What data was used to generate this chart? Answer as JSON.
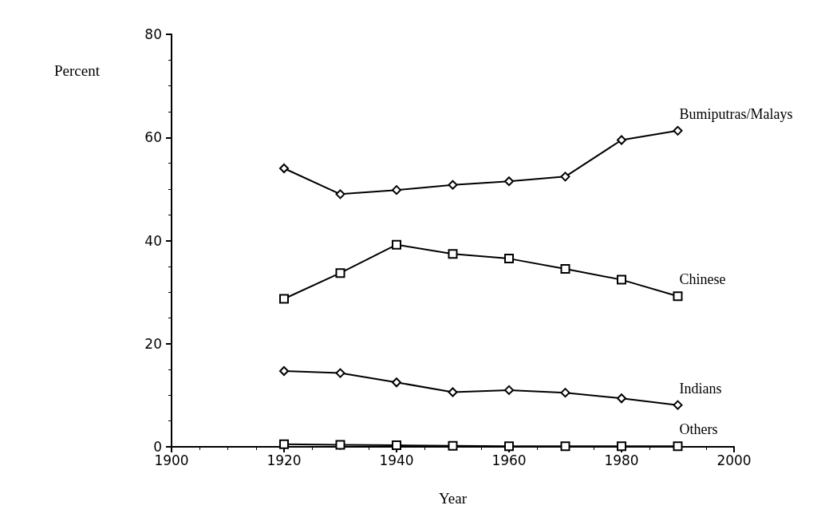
{
  "chart_data": {
    "type": "line",
    "xlabel": "Year",
    "ylabel": "Percent",
    "x": [
      1920,
      1930,
      1940,
      1950,
      1960,
      1970,
      1980,
      1990
    ],
    "xlim": [
      1900,
      2000
    ],
    "xticks": [
      1900,
      1920,
      1940,
      1960,
      1980,
      2000
    ],
    "ylim": [
      0,
      80
    ],
    "yticks": [
      0,
      20,
      40,
      60,
      80
    ],
    "grid": false,
    "legend": false,
    "line_style": "solid",
    "series": [
      {
        "name": "Bumiputras/Malays",
        "color": "#000000",
        "marker": "diamond",
        "values": [
          54.0,
          49.0,
          49.8,
          50.8,
          51.5,
          52.4,
          59.5,
          61.3
        ]
      },
      {
        "name": "Chinese",
        "color": "#000000",
        "marker": "square",
        "values": [
          28.7,
          33.7,
          39.2,
          37.4,
          36.5,
          34.5,
          32.4,
          29.2
        ]
      },
      {
        "name": "Indians",
        "color": "#000000",
        "marker": "diamond",
        "values": [
          14.7,
          14.3,
          12.5,
          10.6,
          11.0,
          10.5,
          9.4,
          8.1
        ]
      },
      {
        "name": "Others",
        "color": "#000000",
        "marker": "square",
        "values": [
          0.5,
          0.4,
          0.3,
          0.2,
          0.1,
          0.1,
          0.1,
          0.1
        ]
      }
    ]
  }
}
